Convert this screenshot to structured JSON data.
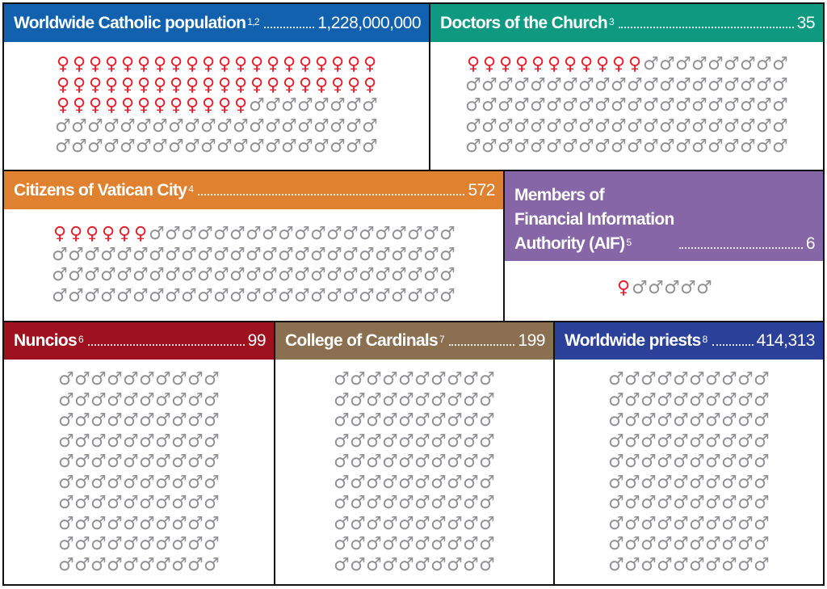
{
  "colors": {
    "female": "#e8202e",
    "male": "#929296"
  },
  "icons": {
    "female": "female-symbol-icon",
    "male": "male-symbol-icon"
  },
  "panels": [
    {
      "id": "catholic-population",
      "title": "Worldwide Catholic population",
      "sup": "1,2",
      "value": "1,228,000,000",
      "color": "#1261ae",
      "female": 52,
      "male": 48,
      "cols": 20
    },
    {
      "id": "doctors-of-church",
      "title": "Doctors of the Church",
      "sup": "3",
      "value": "35",
      "color": "#0e9a80",
      "female": 11,
      "male": 89,
      "cols": 20
    },
    {
      "id": "vatican-citizens",
      "title": "Citizens of Vatican City",
      "sup": "4",
      "value": "572",
      "color": "#e0812f",
      "female": 6,
      "male": 94,
      "cols": 25
    },
    {
      "id": "aif-members",
      "title": "Members of\nFinancial Information\nAuthority (AIF)",
      "sup": "5",
      "value": "6",
      "color": "#8766a8",
      "female": 1,
      "male": 5,
      "cols": 6
    },
    {
      "id": "nuncios",
      "title": "Nuncios",
      "sup": "6",
      "value": "99",
      "color": "#9e1220",
      "female": 0,
      "male": 100,
      "cols": 10
    },
    {
      "id": "college-of-cardinals",
      "title": "College of Cardinals",
      "sup": "7",
      "value": "199",
      "color": "#8a6f50",
      "female": 0,
      "male": 100,
      "cols": 10
    },
    {
      "id": "worldwide-priests",
      "title": "Worldwide priests",
      "sup": "8",
      "value": "414,313",
      "color": "#2b4098",
      "female": 0,
      "male": 100,
      "cols": 10
    }
  ],
  "chart_data": {
    "type": "pictograph",
    "unit": "icons per 100 (percent)",
    "categories": [
      "Worldwide Catholic population",
      "Doctors of the Church",
      "Citizens of Vatican City",
      "Members of Financial Information Authority (AIF)",
      "Nuncios",
      "College of Cardinals",
      "Worldwide priests"
    ],
    "totals": [
      "1,228,000,000",
      "35",
      "572",
      "6",
      "99",
      "199",
      "414,313"
    ],
    "series": [
      {
        "name": "female",
        "values": [
          52,
          11,
          6,
          1,
          0,
          0,
          0
        ]
      },
      {
        "name": "male",
        "values": [
          48,
          89,
          94,
          5,
          100,
          100,
          100
        ]
      }
    ]
  }
}
